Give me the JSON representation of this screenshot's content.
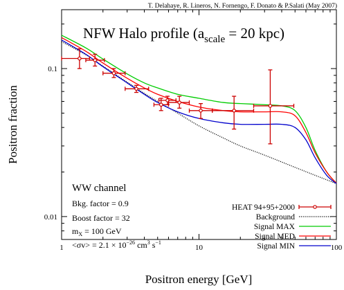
{
  "chart_data": {
    "type": "line",
    "credit": "T. Delahaye, R. Lineros, N. Fornengo, F. Donato & P.Salati (May 2007)",
    "title": {
      "main": "NFW Halo profile (a",
      "sub": "scale",
      "tail": " = 20 kpc)"
    },
    "xlabel": "Positron energy [GeV]",
    "ylabel": "Positron fraction",
    "x_scale": "log",
    "y_scale": "log",
    "xlim": [
      1,
      100
    ],
    "ylim": [
      0.007,
      0.25
    ],
    "x_ticks": [
      {
        "value": 1,
        "label": "1"
      },
      {
        "value": 10,
        "label": "10"
      },
      {
        "value": 100,
        "label": "100"
      }
    ],
    "y_ticks": [
      {
        "value": 0.01,
        "label": "0.01"
      },
      {
        "value": 0.1,
        "label": "0.1"
      }
    ],
    "annotations": {
      "channel": "WW channel",
      "bkg": "Bkg. factor = 0.9",
      "boost": "Boost factor = 32",
      "mass_pre": "m",
      "mass_sub": "X",
      "mass_post": " = 100 GeV",
      "sigma_pre": "<σv> = 2.1 × 10",
      "sigma_exp1": "−26",
      "sigma_mid": " cm",
      "sigma_exp2": "3",
      "sigma_mid2": " s",
      "sigma_exp3": "−1"
    },
    "legend_position": "bottom-right",
    "series": [
      {
        "name": "HEAT 94+95+2000",
        "kind": "points",
        "color": "#cc0000",
        "points": [
          {
            "x": 1.35,
            "y": 0.117,
            "xlo": 1.0,
            "xhi": 1.6,
            "ylo": 0.1,
            "yhi": 0.136
          },
          {
            "x": 1.75,
            "y": 0.114,
            "xlo": 1.5,
            "xhi": 2.05,
            "ylo": 0.104,
            "yhi": 0.125
          },
          {
            "x": 2.4,
            "y": 0.093,
            "xlo": 2.0,
            "xhi": 2.9,
            "ylo": 0.087,
            "yhi": 0.1
          },
          {
            "x": 3.5,
            "y": 0.073,
            "xlo": 2.9,
            "xhi": 4.3,
            "ylo": 0.069,
            "yhi": 0.077
          },
          {
            "x": 5.3,
            "y": 0.057,
            "xlo": 4.7,
            "xhi": 6.0,
            "ylo": 0.052,
            "yhi": 0.063
          },
          {
            "x": 5.9,
            "y": 0.061,
            "xlo": 5.1,
            "xhi": 6.8,
            "ylo": 0.057,
            "yhi": 0.065
          },
          {
            "x": 7.2,
            "y": 0.059,
            "xlo": 6.0,
            "xhi": 8.5,
            "ylo": 0.054,
            "yhi": 0.065
          },
          {
            "x": 10.3,
            "y": 0.052,
            "xlo": 8.5,
            "xhi": 12.5,
            "ylo": 0.046,
            "yhi": 0.058
          },
          {
            "x": 18.0,
            "y": 0.052,
            "xlo": 12.5,
            "xhi": 25.0,
            "ylo": 0.039,
            "yhi": 0.065
          },
          {
            "x": 33.0,
            "y": 0.056,
            "xlo": 25.0,
            "xhi": 49.0,
            "ylo": 0.031,
            "yhi": 0.098
          }
        ]
      },
      {
        "name": "Background",
        "kind": "line",
        "dash": "dotted",
        "color": "#000000",
        "points": [
          [
            1,
            0.152
          ],
          [
            1.5,
            0.124
          ],
          [
            2,
            0.104
          ],
          [
            3,
            0.081
          ],
          [
            4,
            0.068
          ],
          [
            5,
            0.06
          ],
          [
            7,
            0.05
          ],
          [
            10,
            0.041
          ],
          [
            15,
            0.034
          ],
          [
            20,
            0.03
          ],
          [
            30,
            0.026
          ],
          [
            50,
            0.0215
          ],
          [
            70,
            0.019
          ],
          [
            100,
            0.0167
          ]
        ]
      },
      {
        "name": "Signal MAX",
        "kind": "line",
        "color": "#00cc00",
        "points": [
          [
            1,
            0.168
          ],
          [
            1.5,
            0.138
          ],
          [
            2,
            0.116
          ],
          [
            3,
            0.092
          ],
          [
            4,
            0.08
          ],
          [
            5,
            0.074
          ],
          [
            7,
            0.067
          ],
          [
            10,
            0.063
          ],
          [
            15,
            0.059
          ],
          [
            20,
            0.058
          ],
          [
            30,
            0.057
          ],
          [
            40,
            0.056
          ],
          [
            50,
            0.052
          ],
          [
            60,
            0.04
          ],
          [
            70,
            0.028
          ],
          [
            85,
            0.02
          ],
          [
            100,
            0.0168
          ]
        ]
      },
      {
        "name": "Signal MED",
        "kind": "line",
        "color": "#ff0000",
        "points": [
          [
            1,
            0.162
          ],
          [
            1.5,
            0.131
          ],
          [
            2,
            0.109
          ],
          [
            3,
            0.086
          ],
          [
            4,
            0.074
          ],
          [
            5,
            0.067
          ],
          [
            7,
            0.06
          ],
          [
            10,
            0.055
          ],
          [
            15,
            0.052
          ],
          [
            20,
            0.051
          ],
          [
            30,
            0.051
          ],
          [
            40,
            0.051
          ],
          [
            50,
            0.048
          ],
          [
            60,
            0.037
          ],
          [
            70,
            0.027
          ],
          [
            85,
            0.02
          ],
          [
            100,
            0.0168
          ]
        ]
      },
      {
        "name": "Signal MIN",
        "kind": "line",
        "color": "#0000cc",
        "points": [
          [
            1,
            0.156
          ],
          [
            1.5,
            0.125
          ],
          [
            2,
            0.103
          ],
          [
            3,
            0.08
          ],
          [
            4,
            0.067
          ],
          [
            5,
            0.059
          ],
          [
            7,
            0.051
          ],
          [
            10,
            0.046
          ],
          [
            15,
            0.043
          ],
          [
            20,
            0.042
          ],
          [
            30,
            0.042
          ],
          [
            40,
            0.042
          ],
          [
            50,
            0.04
          ],
          [
            60,
            0.033
          ],
          [
            70,
            0.025
          ],
          [
            85,
            0.019
          ],
          [
            100,
            0.0167
          ]
        ]
      }
    ]
  }
}
